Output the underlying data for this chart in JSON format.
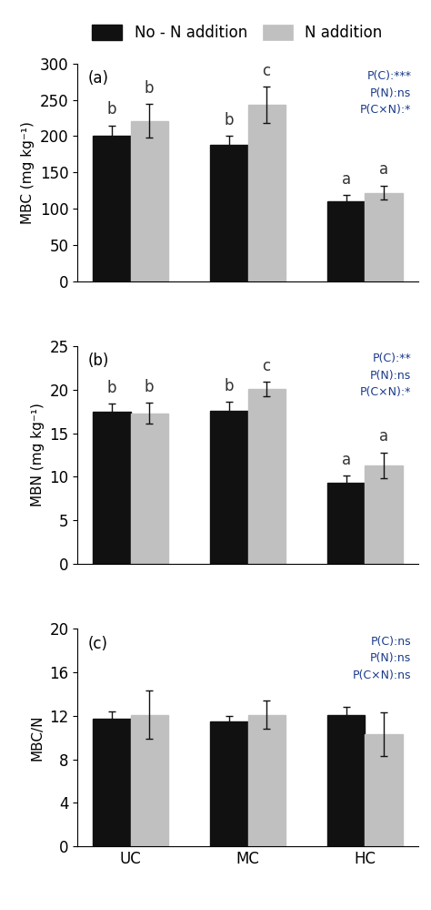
{
  "categories": [
    "UC",
    "MC",
    "HC"
  ],
  "bar_width": 0.32,
  "black_color": "#111111",
  "gray_color": "#c0c0c0",
  "legend_labels": [
    "No - N addition",
    "N addition"
  ],
  "panel_a": {
    "label": "(a)",
    "ylabel": "MBC (mg kg⁻¹)",
    "ylim": [
      0,
      300
    ],
    "yticks": [
      0,
      50,
      100,
      150,
      200,
      250,
      300
    ],
    "black_vals": [
      201,
      188,
      110
    ],
    "gray_vals": [
      221,
      243,
      122
    ],
    "black_err": [
      14,
      12,
      9
    ],
    "gray_err": [
      23,
      25,
      10
    ],
    "black_letters": [
      "b",
      "b",
      "a"
    ],
    "gray_letters": [
      "b",
      "c",
      "a"
    ],
    "stats": "P(C):***\nP(N):ns\nP(C×N):*"
  },
  "panel_b": {
    "label": "(b)",
    "ylabel": "MBN (mg kg⁻¹)",
    "ylim": [
      0,
      25
    ],
    "yticks": [
      0,
      5,
      10,
      15,
      20,
      25
    ],
    "black_vals": [
      17.5,
      17.6,
      9.3
    ],
    "gray_vals": [
      17.3,
      20.1,
      11.3
    ],
    "black_err": [
      0.9,
      1.0,
      0.8
    ],
    "gray_err": [
      1.2,
      0.8,
      1.5
    ],
    "black_letters": [
      "b",
      "b",
      "a"
    ],
    "gray_letters": [
      "b",
      "c",
      "a"
    ],
    "stats": "P(C):**\nP(N):ns\nP(C×N):*"
  },
  "panel_c": {
    "label": "(c)",
    "ylabel": "MBC/N",
    "ylim": [
      0,
      20
    ],
    "yticks": [
      0,
      4,
      8,
      12,
      16,
      20
    ],
    "black_vals": [
      11.7,
      11.5,
      12.1
    ],
    "gray_vals": [
      12.1,
      12.1,
      10.3
    ],
    "black_err": [
      0.7,
      0.5,
      0.7
    ],
    "gray_err": [
      2.2,
      1.3,
      2.0
    ],
    "black_letters": [
      null,
      null,
      null
    ],
    "gray_letters": [
      null,
      null,
      null
    ],
    "stats": "P(C):ns\nP(N):ns\nP(C×N):ns"
  }
}
